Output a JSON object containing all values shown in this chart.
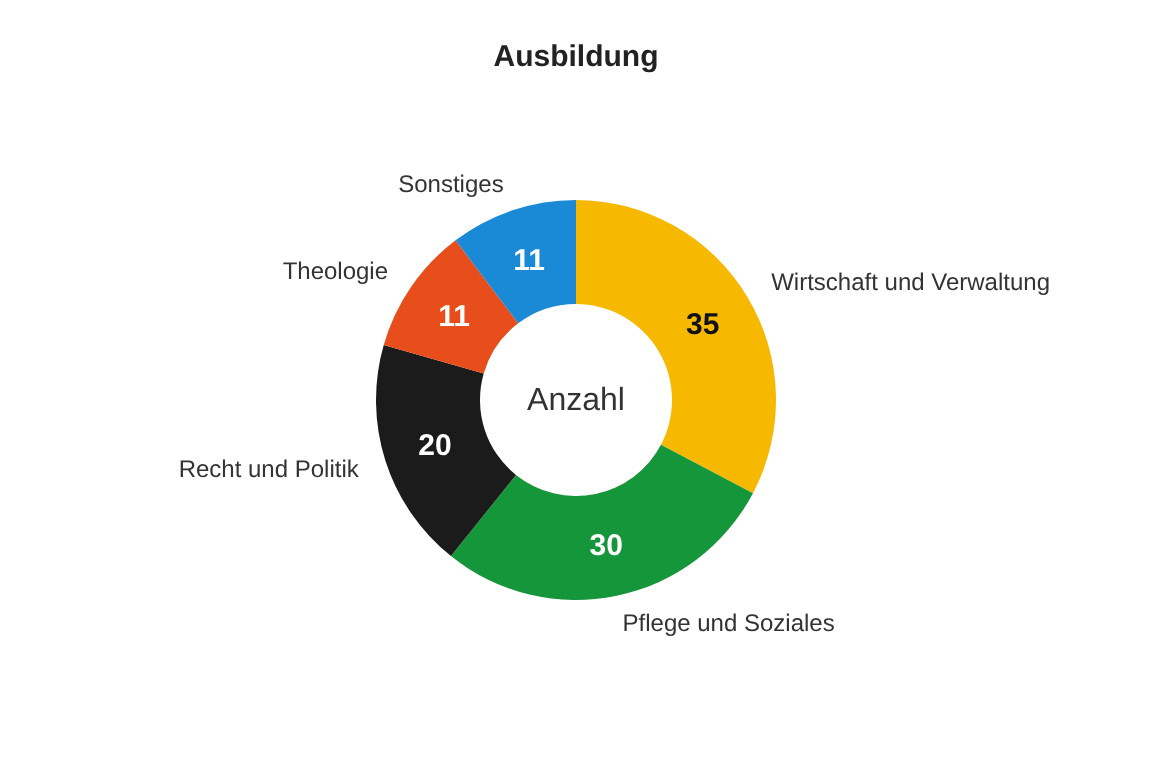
{
  "chart_data": {
    "type": "donut",
    "title": "Ausbildung",
    "categories": [
      "Wirtschaft und Verwaltung",
      "Pflege und Soziales",
      "Recht und Politik",
      "Theologie",
      "Sonstiges"
    ],
    "values": [
      35,
      30,
      20,
      11,
      11
    ],
    "colors": [
      "#f7b900",
      "#16963a",
      "#1b1b1b",
      "#e84e1b",
      "#1b8ad6"
    ],
    "annotations": [
      "Anzahl"
    ],
    "data_labels": true,
    "legend": false
  }
}
